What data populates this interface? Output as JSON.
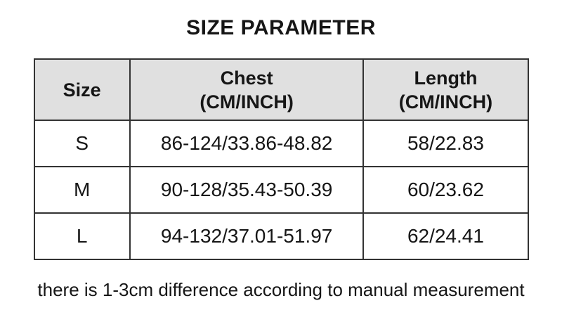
{
  "page": {
    "title": "SIZE PARAMETER",
    "footnote": "there is 1-3cm difference according to manual measurement"
  },
  "table": {
    "headers": [
      {
        "label": "Size",
        "sub": ""
      },
      {
        "label": "Chest",
        "sub": "(CM/INCH)"
      },
      {
        "label": "Length",
        "sub": "(CM/INCH)"
      }
    ],
    "rows": [
      {
        "size": "S",
        "chest": "86-124/33.86-48.82",
        "length": "58/22.83"
      },
      {
        "size": "M",
        "chest": "90-128/35.43-50.39",
        "length": "60/23.62"
      },
      {
        "size": "L",
        "chest": "94-132/37.01-51.97",
        "length": "62/24.41"
      }
    ]
  },
  "colors": {
    "background": "#ffffff",
    "header_bg": "#e0e0e0",
    "border": "#333333",
    "text": "#161616"
  }
}
